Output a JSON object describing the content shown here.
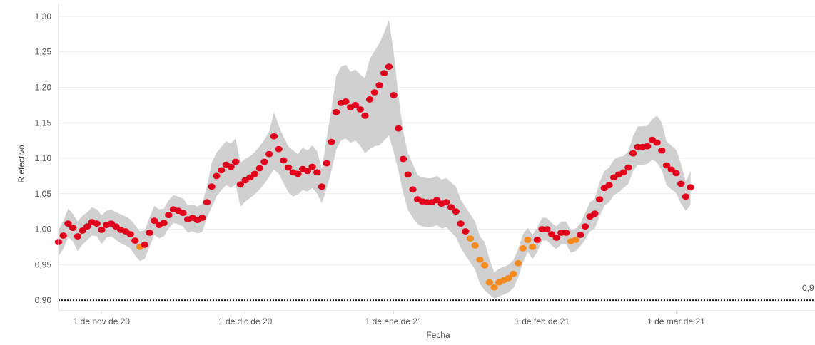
{
  "chart_data": {
    "type": "scatter",
    "title": "",
    "xlabel": "Fecha",
    "ylabel": "R efectivo",
    "x_tick_labels": [
      "1 de nov de 20",
      "1 de dic de 20",
      "1 de ene de 21",
      "1 de feb de 21",
      "1 de mar de 21"
    ],
    "x_ticks": [
      "2020-11-01",
      "2020-12-01",
      "2021-01-01",
      "2021-02-01",
      "2021-03-01"
    ],
    "xlim": [
      "2020-10-23",
      "2021-03-30"
    ],
    "y_tick_labels": [
      "0,90",
      "0,95",
      "1,00",
      "1,05",
      "1,10",
      "1,15",
      "1,20",
      "1,25",
      "1,30"
    ],
    "ylim": [
      0.885,
      1.305
    ],
    "grid": true,
    "reference_line": {
      "value": 0.9,
      "label": "0,9",
      "style": "dotted"
    },
    "colors": {
      "high": "#e0001b",
      "low": "#f58a1f",
      "band": "#d0d0d0",
      "reference": "#222222"
    },
    "x_start": "2020-10-23",
    "series": [
      {
        "values": [
          0.982,
          0.991,
          1.008,
          1.002,
          0.99,
          0.998,
          1.004,
          1.01,
          1.008,
          0.999,
          1.006,
          1.008,
          1.004,
          0.999,
          0.997,
          0.993,
          0.984,
          0.975,
          0.978,
          0.995,
          1.012,
          1.006,
          1.009,
          1.02,
          1.028,
          1.026,
          1.023,
          1.014,
          1.016,
          1.013,
          1.016,
          1.038,
          1.06,
          1.075,
          1.083,
          1.091,
          1.088,
          1.095,
          1.063,
          1.069,
          1.073,
          1.078,
          1.086,
          1.095,
          1.106,
          1.131,
          1.113,
          1.097,
          1.087,
          1.08,
          1.078,
          1.085,
          1.082,
          1.088,
          1.08,
          1.06,
          1.093,
          1.123,
          1.165,
          1.178,
          1.18,
          1.172,
          1.175,
          1.169,
          1.16,
          1.183,
          1.193,
          1.203,
          1.22,
          1.229,
          1.189,
          1.142,
          1.099,
          1.077,
          1.056,
          1.042,
          1.039,
          1.038,
          1.038,
          1.041,
          1.036,
          1.038,
          1.031,
          1.025,
          1.008,
          0.997,
          0.987,
          0.977,
          0.957,
          0.949,
          0.925,
          0.918,
          0.925,
          0.928,
          0.931,
          0.937,
          0.952,
          0.973,
          0.985,
          0.975,
          0.985,
          1.0,
          1.0,
          0.993,
          0.988,
          0.995,
          0.995,
          0.983,
          0.985,
          0.992,
          1.004,
          1.018,
          1.022,
          1.042,
          1.058,
          1.062,
          1.073,
          1.077,
          1.08,
          1.087,
          1.107,
          1.116,
          1.116,
          1.117,
          1.126,
          1.122,
          1.111,
          1.09,
          1.084,
          1.079,
          1.064,
          1.046,
          1.059
        ],
        "lower": [
          0.962,
          0.972,
          0.989,
          0.983,
          0.969,
          0.978,
          0.985,
          0.991,
          0.99,
          0.979,
          0.988,
          0.99,
          0.985,
          0.98,
          0.977,
          0.973,
          0.963,
          0.955,
          0.958,
          0.975,
          0.992,
          0.987,
          0.99,
          1.001,
          1.009,
          1.007,
          1.004,
          0.995,
          0.997,
          0.994,
          0.996,
          1.016,
          1.031,
          1.046,
          1.055,
          1.062,
          1.058,
          1.063,
          1.032,
          1.039,
          1.044,
          1.049,
          1.056,
          1.064,
          1.074,
          1.084,
          1.078,
          1.065,
          1.052,
          1.046,
          1.049,
          1.055,
          1.053,
          1.058,
          1.05,
          1.037,
          1.057,
          1.082,
          1.112,
          1.125,
          1.128,
          1.122,
          1.125,
          1.118,
          1.107,
          1.113,
          1.117,
          1.118,
          1.125,
          1.132,
          1.109,
          1.082,
          1.051,
          1.027,
          1.016,
          1.007,
          1.004,
          1.003,
          1.003,
          1.006,
          1.001,
          1.003,
          0.996,
          0.989,
          0.974,
          0.963,
          0.953,
          0.943,
          0.923,
          0.914,
          0.908,
          0.902,
          0.905,
          0.908,
          0.911,
          0.917,
          0.932,
          0.953,
          0.968,
          0.958,
          0.968,
          0.984,
          0.984,
          0.977,
          0.972,
          0.979,
          0.979,
          0.967,
          0.969,
          0.976,
          0.985,
          0.997,
          1.001,
          1.018,
          1.033,
          1.038,
          1.048,
          1.052,
          1.058,
          1.064,
          1.082,
          1.091,
          1.091,
          1.092,
          1.098,
          1.094,
          1.083,
          1.062,
          1.056,
          1.051,
          1.036,
          1.026,
          1.034
        ],
        "upper": [
          0.999,
          1.012,
          1.029,
          1.022,
          1.011,
          1.019,
          1.024,
          1.031,
          1.028,
          1.02,
          1.026,
          1.028,
          1.024,
          1.021,
          1.018,
          1.014,
          1.006,
          0.997,
          0.999,
          1.016,
          1.033,
          1.028,
          1.029,
          1.041,
          1.048,
          1.046,
          1.043,
          1.034,
          1.035,
          1.032,
          1.036,
          1.06,
          1.094,
          1.108,
          1.116,
          1.124,
          1.121,
          1.128,
          1.094,
          1.099,
          1.103,
          1.109,
          1.117,
          1.126,
          1.138,
          1.165,
          1.146,
          1.13,
          1.117,
          1.111,
          1.106,
          1.115,
          1.111,
          1.118,
          1.11,
          1.085,
          1.129,
          1.169,
          1.216,
          1.229,
          1.232,
          1.222,
          1.225,
          1.218,
          1.213,
          1.24,
          1.251,
          1.262,
          1.277,
          1.295,
          1.249,
          1.188,
          1.138,
          1.107,
          1.092,
          1.076,
          1.073,
          1.072,
          1.072,
          1.075,
          1.07,
          1.072,
          1.066,
          1.06,
          1.042,
          1.031,
          1.021,
          1.011,
          0.99,
          0.982,
          0.958,
          0.939,
          0.944,
          0.947,
          0.95,
          0.956,
          0.972,
          0.993,
          1.002,
          0.992,
          1.003,
          1.016,
          1.016,
          1.009,
          1.004,
          1.011,
          1.011,
          0.999,
          1.001,
          1.008,
          1.023,
          1.038,
          1.043,
          1.066,
          1.082,
          1.087,
          1.098,
          1.102,
          1.103,
          1.11,
          1.131,
          1.145,
          1.145,
          1.146,
          1.155,
          1.16,
          1.15,
          1.124,
          1.118,
          1.112,
          1.092,
          1.067,
          1.082
        ]
      }
    ]
  }
}
